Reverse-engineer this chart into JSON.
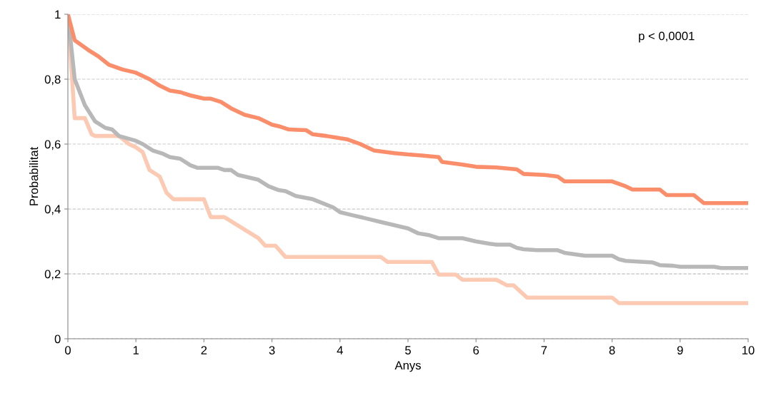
{
  "chart_data": {
    "type": "line",
    "xlabel": "Anys",
    "ylabel": "Probabilitat",
    "annotations": [
      "p < 0,0001"
    ],
    "xlim": [
      0,
      10
    ],
    "xticks": [
      0,
      1,
      2,
      3,
      4,
      5,
      6,
      7,
      8,
      9,
      10
    ],
    "ylim": [
      0,
      1
    ],
    "yticks": [
      0,
      {
        "value": 0.2,
        "label": "0,2"
      },
      {
        "value": 0.4,
        "label": "0,4"
      },
      {
        "value": 0.6,
        "label": "0,6"
      },
      {
        "value": 0.8,
        "label": "0,8"
      },
      1
    ],
    "grid": "y",
    "legend": false,
    "marker": "none",
    "line_style": "solid",
    "series": [
      {
        "color": "#fcc9b3",
        "x": [
          0,
          0.1,
          0.25,
          0.35,
          0.4,
          0.75,
          0.9,
          1.0,
          1.1,
          1.2,
          1.35,
          1.45,
          1.55,
          1.65,
          2.0,
          2.1,
          2.3,
          2.8,
          2.9,
          3.05,
          3.2,
          4.6,
          4.7,
          5.35,
          5.45,
          5.7,
          5.8,
          6.3,
          6.45,
          6.55,
          6.75,
          8.0,
          8.1,
          10
        ],
        "values": [
          1,
          0.68,
          0.68,
          0.63,
          0.625,
          0.625,
          0.6,
          0.59,
          0.575,
          0.52,
          0.5,
          0.45,
          0.43,
          0.43,
          0.43,
          0.375,
          0.375,
          0.31,
          0.287,
          0.287,
          0.252,
          0.252,
          0.237,
          0.237,
          0.198,
          0.198,
          0.182,
          0.182,
          0.165,
          0.165,
          0.127,
          0.127,
          0.11,
          0.11
        ]
      },
      {
        "color": "#b8b8b8",
        "x": [
          0,
          0.1,
          0.25,
          0.4,
          0.55,
          0.65,
          0.75,
          1.0,
          1.1,
          1.25,
          1.4,
          1.5,
          1.65,
          1.8,
          1.9,
          2.2,
          2.3,
          2.4,
          2.5,
          2.8,
          2.95,
          3.1,
          3.2,
          3.35,
          3.6,
          3.9,
          4.0,
          4.2,
          4.4,
          4.6,
          4.8,
          5.0,
          5.15,
          5.3,
          5.45,
          5.8,
          6.0,
          6.2,
          6.3,
          6.5,
          6.6,
          6.7,
          6.9,
          7.2,
          7.3,
          7.6,
          8.0,
          8.1,
          8.2,
          8.6,
          8.7,
          8.9,
          9.0,
          9.5,
          9.6,
          10
        ],
        "values": [
          1,
          0.8,
          0.72,
          0.67,
          0.65,
          0.645,
          0.625,
          0.61,
          0.6,
          0.58,
          0.57,
          0.56,
          0.555,
          0.535,
          0.527,
          0.527,
          0.52,
          0.52,
          0.505,
          0.49,
          0.47,
          0.458,
          0.455,
          0.44,
          0.43,
          0.405,
          0.39,
          0.38,
          0.37,
          0.36,
          0.35,
          0.34,
          0.325,
          0.32,
          0.31,
          0.31,
          0.3,
          0.293,
          0.29,
          0.29,
          0.28,
          0.276,
          0.273,
          0.273,
          0.265,
          0.256,
          0.256,
          0.245,
          0.24,
          0.235,
          0.227,
          0.225,
          0.222,
          0.222,
          0.218,
          0.218
        ]
      },
      {
        "color": "#fa8e6a",
        "x": [
          0,
          0.1,
          0.3,
          0.45,
          0.6,
          0.8,
          1.0,
          1.2,
          1.35,
          1.5,
          1.65,
          1.8,
          2.0,
          2.1,
          2.25,
          2.4,
          2.6,
          2.8,
          3.0,
          3.1,
          3.25,
          3.5,
          3.6,
          3.8,
          4.0,
          4.1,
          4.3,
          4.5,
          4.8,
          5.0,
          5.2,
          5.45,
          5.5,
          5.8,
          6.0,
          6.3,
          6.6,
          6.7,
          7.0,
          7.2,
          7.3,
          8.0,
          8.2,
          8.3,
          8.7,
          8.8,
          9.2,
          9.35,
          10
        ],
        "values": [
          1,
          0.92,
          0.89,
          0.87,
          0.845,
          0.83,
          0.82,
          0.8,
          0.78,
          0.765,
          0.76,
          0.75,
          0.74,
          0.74,
          0.73,
          0.71,
          0.69,
          0.68,
          0.66,
          0.655,
          0.645,
          0.643,
          0.63,
          0.625,
          0.618,
          0.615,
          0.6,
          0.58,
          0.572,
          0.568,
          0.565,
          0.56,
          0.545,
          0.537,
          0.53,
          0.528,
          0.522,
          0.508,
          0.505,
          0.5,
          0.485,
          0.485,
          0.47,
          0.46,
          0.46,
          0.443,
          0.443,
          0.418,
          0.418
        ]
      }
    ]
  }
}
